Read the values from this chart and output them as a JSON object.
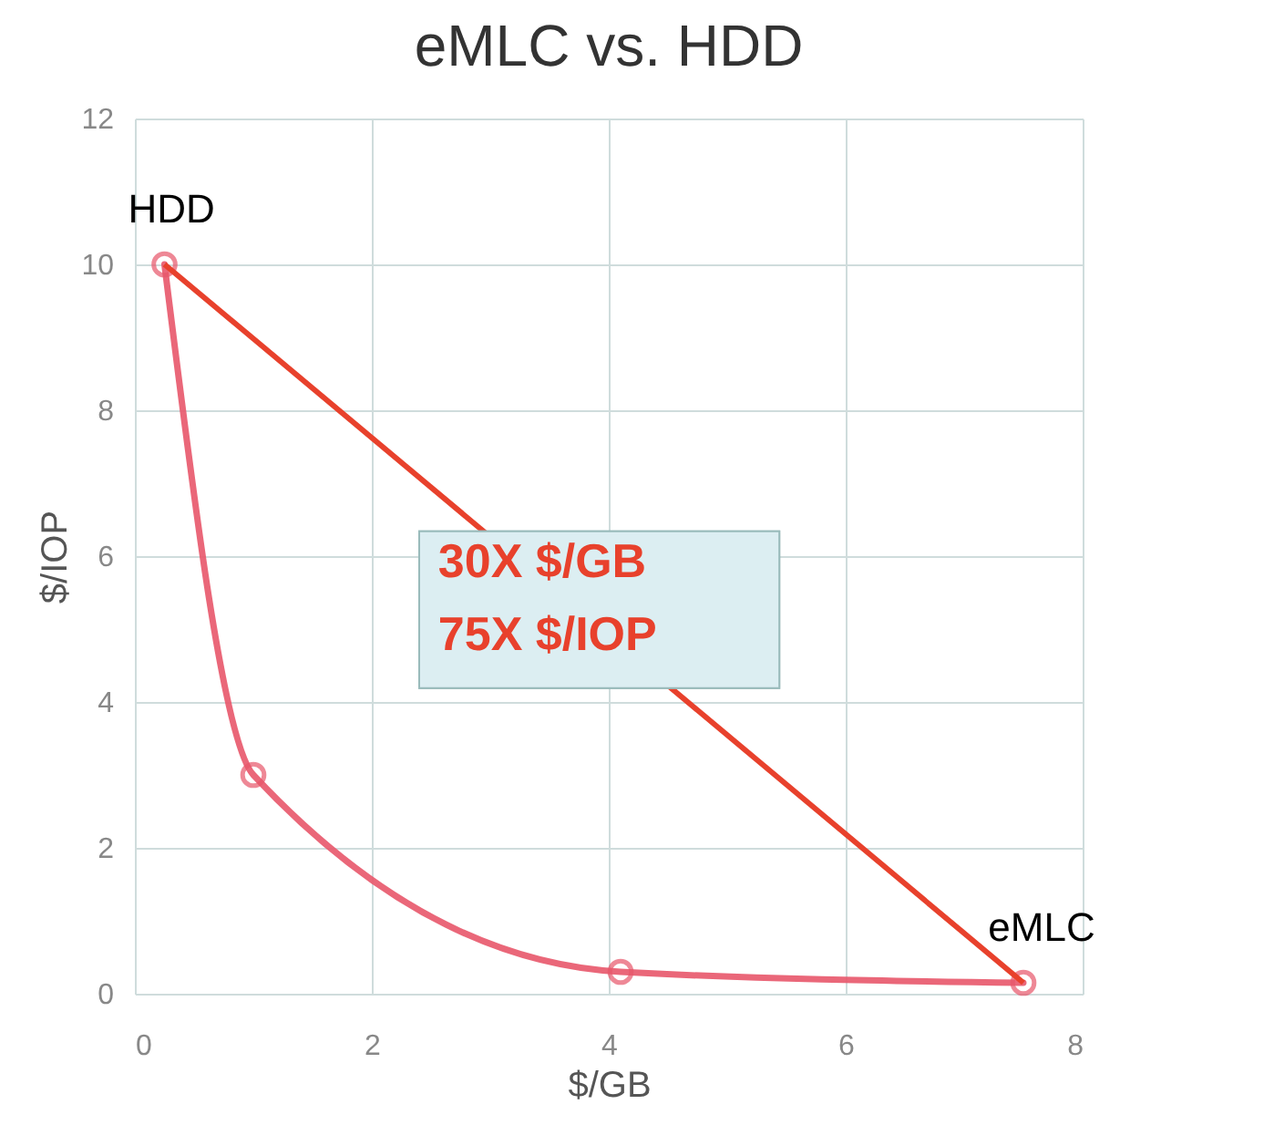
{
  "chart_data": {
    "type": "line",
    "title": "eMLC vs. HDD",
    "xlabel": "$/GB",
    "ylabel": "$/IOP",
    "x": [
      0.25,
      1,
      4.1,
      7.5
    ],
    "series": [
      {
        "color": "#e8566a",
        "values": [
          10,
          3,
          0.3,
          0.15
        ]
      }
    ],
    "xlim": [
      0,
      8
    ],
    "xticks": [
      0,
      2,
      4,
      6,
      8
    ],
    "ylim": [
      0,
      12
    ],
    "yticks": [
      0,
      2,
      4,
      6,
      8,
      10,
      12
    ],
    "grid": true,
    "marker": "circle",
    "line_style": "solid",
    "annotations": [
      {
        "text": "HDD",
        "x": 0.25,
        "y": 10
      },
      {
        "text": "eMLC",
        "x": 7.5,
        "y": 0.15
      },
      "30X $/GB",
      "75X $/IOP"
    ]
  }
}
